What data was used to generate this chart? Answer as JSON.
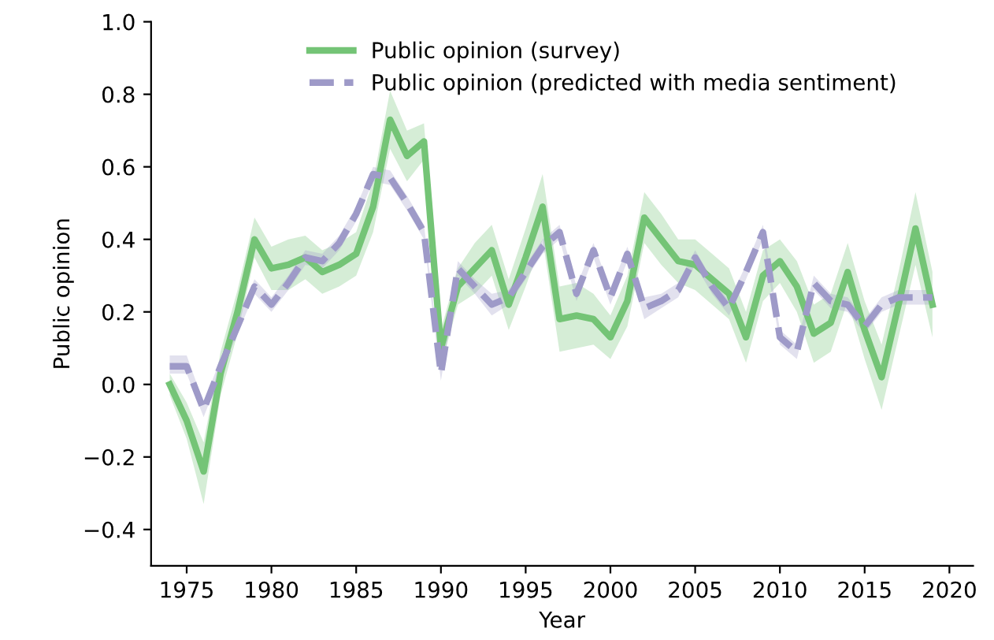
{
  "chart_data": {
    "type": "line",
    "xlabel": "Year",
    "ylabel": "Public opinion",
    "x": [
      1974,
      1975,
      1976,
      1977,
      1978,
      1979,
      1980,
      1981,
      1982,
      1983,
      1984,
      1985,
      1986,
      1987,
      1988,
      1989,
      1990,
      1991,
      1992,
      1993,
      1994,
      1995,
      1996,
      1997,
      1998,
      1999,
      2000,
      2001,
      2002,
      2003,
      2004,
      2005,
      2006,
      2007,
      2008,
      2009,
      2010,
      2011,
      2012,
      2013,
      2014,
      2015,
      2016,
      2017,
      2018,
      2019
    ],
    "series": [
      {
        "name": "Public opinion (survey)",
        "color": "#74c476",
        "line_style": "solid",
        "values": [
          0.0,
          -0.1,
          -0.24,
          0.03,
          0.2,
          0.4,
          0.32,
          0.33,
          0.35,
          0.31,
          0.33,
          0.36,
          0.49,
          0.73,
          0.63,
          0.67,
          0.1,
          0.27,
          0.32,
          0.37,
          0.22,
          0.35,
          0.49,
          0.18,
          0.19,
          0.18,
          0.13,
          0.23,
          0.46,
          0.4,
          0.34,
          0.33,
          0.29,
          0.25,
          0.13,
          0.3,
          0.34,
          0.27,
          0.14,
          0.17,
          0.31,
          0.15,
          0.02,
          0.22,
          0.43,
          0.22
        ],
        "lower": [
          -0.03,
          -0.15,
          -0.33,
          -0.03,
          0.14,
          0.35,
          0.26,
          0.26,
          0.29,
          0.25,
          0.27,
          0.3,
          0.42,
          0.65,
          0.56,
          0.62,
          0.05,
          0.22,
          0.25,
          0.3,
          0.15,
          0.27,
          0.4,
          0.09,
          0.1,
          0.11,
          0.07,
          0.16,
          0.39,
          0.33,
          0.28,
          0.26,
          0.22,
          0.18,
          0.06,
          0.23,
          0.28,
          0.2,
          0.06,
          0.09,
          0.23,
          0.07,
          -0.07,
          0.13,
          0.33,
          0.13
        ],
        "upper": [
          0.03,
          -0.05,
          -0.16,
          0.09,
          0.26,
          0.46,
          0.38,
          0.4,
          0.41,
          0.37,
          0.39,
          0.42,
          0.56,
          0.81,
          0.7,
          0.72,
          0.15,
          0.32,
          0.39,
          0.44,
          0.29,
          0.43,
          0.58,
          0.27,
          0.28,
          0.25,
          0.19,
          0.3,
          0.53,
          0.47,
          0.4,
          0.4,
          0.36,
          0.32,
          0.2,
          0.37,
          0.4,
          0.34,
          0.22,
          0.25,
          0.39,
          0.23,
          0.11,
          0.31,
          0.53,
          0.31
        ]
      },
      {
        "name": "Public opinion (predicted with media sentiment)",
        "color": "#9e9ac8",
        "line_style": "dashed",
        "values": [
          0.05,
          0.05,
          -0.07,
          0.05,
          0.16,
          0.27,
          0.22,
          0.28,
          0.35,
          0.34,
          0.39,
          0.47,
          0.58,
          0.57,
          0.5,
          0.42,
          0.03,
          0.32,
          0.27,
          0.22,
          0.24,
          0.31,
          0.38,
          0.42,
          0.25,
          0.37,
          0.24,
          0.36,
          0.21,
          0.23,
          0.26,
          0.35,
          0.27,
          0.21,
          0.31,
          0.42,
          0.13,
          0.09,
          0.28,
          0.23,
          0.22,
          0.16,
          0.22,
          0.24,
          0.24,
          0.24
        ],
        "lower": [
          0.03,
          0.03,
          -0.09,
          0.03,
          0.14,
          0.25,
          0.2,
          0.26,
          0.33,
          0.32,
          0.37,
          0.45,
          0.56,
          0.55,
          0.48,
          0.4,
          0.01,
          0.3,
          0.25,
          0.19,
          0.22,
          0.29,
          0.36,
          0.4,
          0.23,
          0.35,
          0.22,
          0.34,
          0.18,
          0.21,
          0.24,
          0.33,
          0.25,
          0.19,
          0.29,
          0.4,
          0.11,
          0.07,
          0.26,
          0.21,
          0.2,
          0.14,
          0.2,
          0.22,
          0.22,
          0.22
        ],
        "upper": [
          0.08,
          0.08,
          -0.05,
          0.07,
          0.18,
          0.29,
          0.24,
          0.3,
          0.37,
          0.36,
          0.41,
          0.49,
          0.6,
          0.59,
          0.52,
          0.44,
          0.05,
          0.34,
          0.29,
          0.25,
          0.26,
          0.33,
          0.4,
          0.44,
          0.27,
          0.39,
          0.26,
          0.38,
          0.24,
          0.25,
          0.28,
          0.37,
          0.29,
          0.23,
          0.33,
          0.44,
          0.15,
          0.11,
          0.3,
          0.25,
          0.24,
          0.18,
          0.24,
          0.26,
          0.26,
          0.26
        ]
      }
    ],
    "xlim": [
      1972.9,
      2021.4
    ],
    "xticks": [
      1975,
      1980,
      1985,
      1990,
      1995,
      2000,
      2005,
      2010,
      2015,
      2020
    ],
    "ylim": [
      -0.5,
      1.0
    ],
    "yticks": [
      {
        "value": -0.4,
        "label": "−0.4"
      },
      {
        "value": -0.2,
        "label": "−0.2"
      },
      {
        "value": 0.0,
        "label": "0.0"
      },
      {
        "value": 0.2,
        "label": "0.2"
      },
      {
        "value": 0.4,
        "label": "0.4"
      },
      {
        "value": 0.6,
        "label": "0.6"
      },
      {
        "value": 0.8,
        "label": "0.8"
      },
      {
        "value": 1.0,
        "label": "1.0"
      }
    ],
    "legend": "top",
    "grid": false
  }
}
